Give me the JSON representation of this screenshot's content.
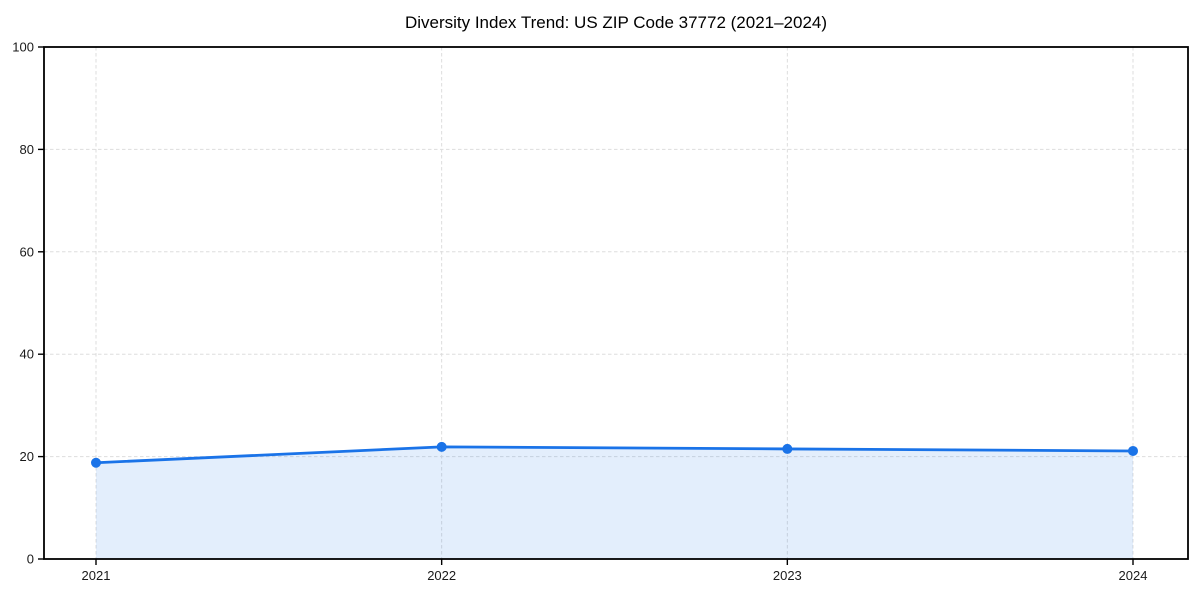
{
  "chart_data": {
    "type": "line",
    "title": "Diversity Index Trend: US ZIP Code 37772 (2021–2024)",
    "x_categories": [
      "2021",
      "2022",
      "2023",
      "2024"
    ],
    "series": [
      {
        "name": "Diversity Index",
        "values": [
          18.8,
          21.9,
          21.5,
          21.1
        ]
      }
    ],
    "xlabel": "",
    "ylabel": "",
    "ylim": [
      0,
      100
    ],
    "yticks": [
      0,
      20,
      40,
      60,
      80,
      100
    ],
    "grid": true,
    "grid_style": "dashed",
    "legend_position": "none",
    "area_fill_to_zero": true,
    "colors": {
      "line": "#1a73e8",
      "marker": "#1a73e8",
      "fill": "rgba(26,115,232,0.12)",
      "grid": "#dddddd",
      "axis": "#000000",
      "tick_label": "#1a1a1a",
      "title": "#000000",
      "background": "#ffffff"
    }
  }
}
